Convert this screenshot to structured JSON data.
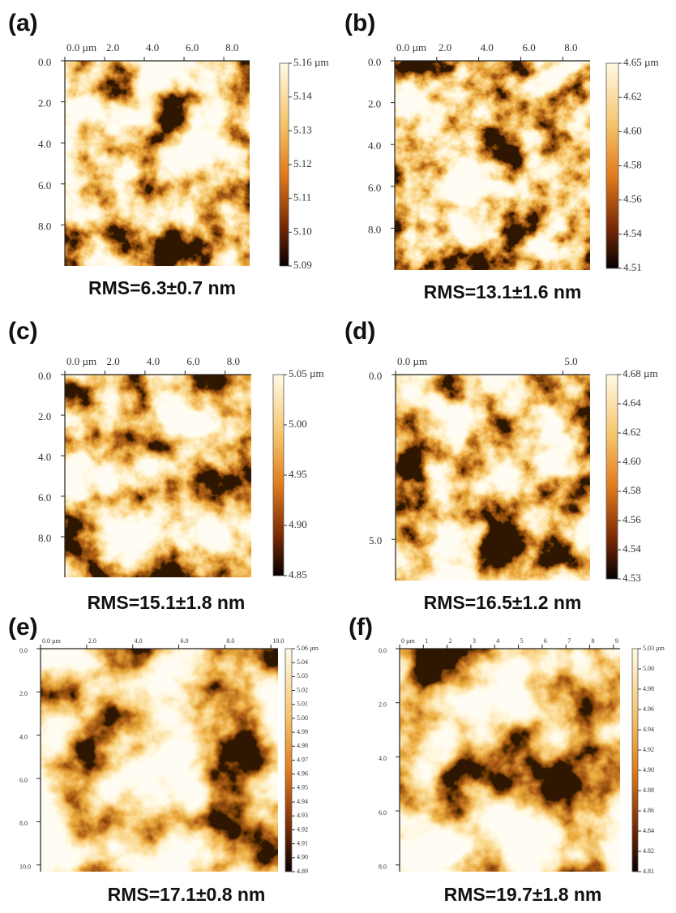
{
  "panels": [
    {
      "label": "(a)",
      "x_ticks": [
        "0.0 µm",
        "2.0",
        "4.0",
        "6.0",
        "8.0"
      ],
      "y_ticks": [
        "0.0",
        "2.0",
        "4.0",
        "6.0",
        "8.0"
      ],
      "colorbar_ticks": [
        "5.16 µm",
        "5.14",
        "5.13",
        "5.12",
        "5.11",
        "5.10",
        "5.09"
      ],
      "rms": "RMS=6.3±0.7 nm"
    },
    {
      "label": "(b)",
      "x_ticks": [
        "0.0 µm",
        "2.0",
        "4.0",
        "6.0",
        "8.0"
      ],
      "y_ticks": [
        "0.0",
        "2.0",
        "4.0",
        "6.0",
        "8.0"
      ],
      "colorbar_ticks": [
        "4.65 µm",
        "4.62",
        "4.60",
        "4.58",
        "4.56",
        "4.54",
        "4.51"
      ],
      "rms": "RMS=13.1±1.6 nm"
    },
    {
      "label": "(c)",
      "x_ticks": [
        "0.0 µm",
        "2.0",
        "4.0",
        "6.0",
        "8.0"
      ],
      "y_ticks": [
        "0.0",
        "2.0",
        "4.0",
        "6.0",
        "8.0"
      ],
      "colorbar_ticks": [
        "5.05 µm",
        "5.00",
        "4.95",
        "4.90",
        "4.85"
      ],
      "rms": "RMS=15.1±1.8 nm"
    },
    {
      "label": "(d)",
      "x_ticks": [
        "0.0 µm",
        "5.0"
      ],
      "y_ticks": [
        "0.0",
        "5.0"
      ],
      "colorbar_ticks": [
        "4.68 µm",
        "4.64",
        "4.62",
        "4.60",
        "4.58",
        "4.56",
        "4.54",
        "4.53"
      ],
      "rms": "RMS=16.5±1.2 nm"
    },
    {
      "label": "(e)",
      "x_ticks": [
        "0.0 µm",
        "2.0",
        "4.0",
        "6.0",
        "8.0",
        "10.0"
      ],
      "y_ticks": [
        "0.0",
        "2.0",
        "4.0",
        "6.0",
        "8.0",
        "10.0"
      ],
      "colorbar_ticks": [
        "5.06 µm",
        "5.04",
        "5.03",
        "5.02",
        "5.01",
        "5.00",
        "4.99",
        "4.98",
        "4.97",
        "4.96",
        "4.95",
        "4.94",
        "4.93",
        "4.92",
        "4.91",
        "4.90",
        "4.89"
      ],
      "rms": "RMS=17.1±0.8 nm"
    },
    {
      "label": "(f)",
      "x_ticks": [
        "0 µm",
        "1",
        "2",
        "3",
        "4",
        "5",
        "6",
        "7",
        "8",
        "9"
      ],
      "y_ticks": [
        "0.0",
        "2.0",
        "4.0",
        "6.0",
        "8.0"
      ],
      "colorbar_ticks": [
        "5.03 µm",
        "5.00",
        "4.98",
        "4.96",
        "4.94",
        "4.92",
        "4.90",
        "4.88",
        "4.86",
        "4.84",
        "4.82",
        "4.81"
      ],
      "rms": "RMS=19.7±1.8 nm"
    }
  ]
}
